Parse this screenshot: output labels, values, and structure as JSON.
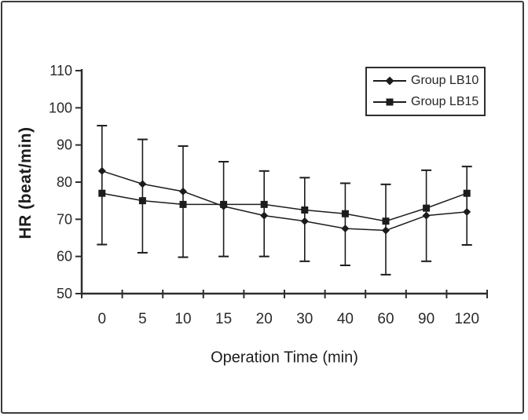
{
  "figure": {
    "background": "#ffffff",
    "frame_color": "#3c3c3c",
    "ink_color": "#1c1c1c"
  },
  "chart_data": {
    "type": "line",
    "title": "",
    "xlabel": "Operation Time (min)",
    "ylabel": "HR (beat/min)",
    "categories": [
      "0",
      "5",
      "10",
      "15",
      "20",
      "30",
      "40",
      "60",
      "90",
      "120"
    ],
    "y_ticks": [
      50,
      60,
      70,
      80,
      90,
      100,
      110
    ],
    "ylim": [
      50,
      110
    ],
    "grid": false,
    "legend_position": "top-right",
    "series": [
      {
        "name": "Group LB10",
        "marker": "diamond",
        "color": "#1c1c1c",
        "values": [
          83,
          79.5,
          77.5,
          73.5,
          71,
          69.5,
          67.5,
          67,
          71,
          72
        ]
      },
      {
        "name": "Group LB15",
        "marker": "square",
        "color": "#1c1c1c",
        "values": [
          77,
          75,
          74,
          74,
          74,
          72.5,
          71.5,
          69.5,
          73,
          77
        ]
      }
    ],
    "error_bars": {
      "top": [
        95.2,
        91.5,
        89.7,
        85.5,
        83,
        81.2,
        79.7,
        79.4,
        83.2,
        84.2
      ],
      "bottom": [
        63.2,
        61,
        59.8,
        60,
        60,
        58.7,
        57.6,
        55.1,
        58.7,
        63.1
      ]
    }
  }
}
